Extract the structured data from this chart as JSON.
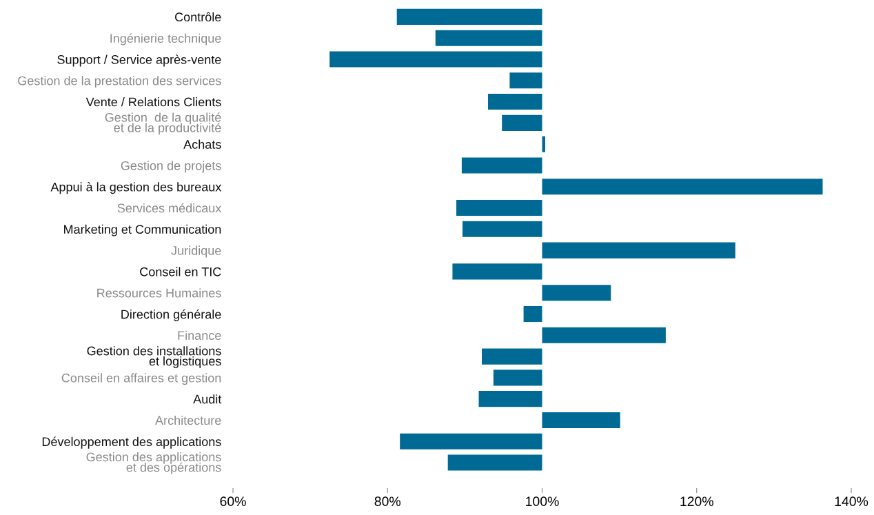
{
  "chart_data": {
    "type": "bar",
    "orientation": "horizontal",
    "color": "#006a94",
    "categories": [
      "Contrôle",
      "Ingénierie technique",
      "Support / Service après-vente",
      "Gestion de la prestation des services",
      "Vente / Relations Clients",
      "Gestion  de la qualité\net de la productivité",
      "Achats",
      "Gestion de projets",
      "Appui à la gestion des bureaux",
      "Services médicaux",
      "Marketing et Communication",
      "Juridique",
      "Conseil en TIC",
      "Ressources Humaines",
      "Direction générale",
      "Finance",
      "Gestion des installations\net logistiques",
      "Conseil en affaires et gestion",
      "Audit",
      "Architecture",
      "Développement des applications",
      "Gestion des applications\net des opérations"
    ],
    "base": [
      100,
      100,
      100,
      100,
      100,
      100,
      100,
      100,
      100,
      100,
      100,
      100,
      100,
      100,
      100,
      100,
      100,
      100,
      100,
      100,
      100,
      100
    ],
    "values": [
      -18.8,
      -13.8,
      -27.5,
      -4.2,
      -7.0,
      -5.2,
      0.4,
      -10.4,
      36.3,
      -11.1,
      -10.3,
      25.0,
      -11.6,
      8.9,
      -2.4,
      16.0,
      -7.8,
      -6.3,
      -8.2,
      10.1,
      -18.4,
      -12.2
    ],
    "xlim": [
      60,
      140
    ],
    "xticks": [
      {
        "value": 60,
        "label": "60%"
      },
      {
        "value": 80,
        "label": "80%"
      },
      {
        "value": 100,
        "label": "100%"
      },
      {
        "value": 120,
        "label": "120%"
      },
      {
        "value": 140,
        "label": "140%"
      }
    ],
    "grid": false,
    "legend": false
  }
}
